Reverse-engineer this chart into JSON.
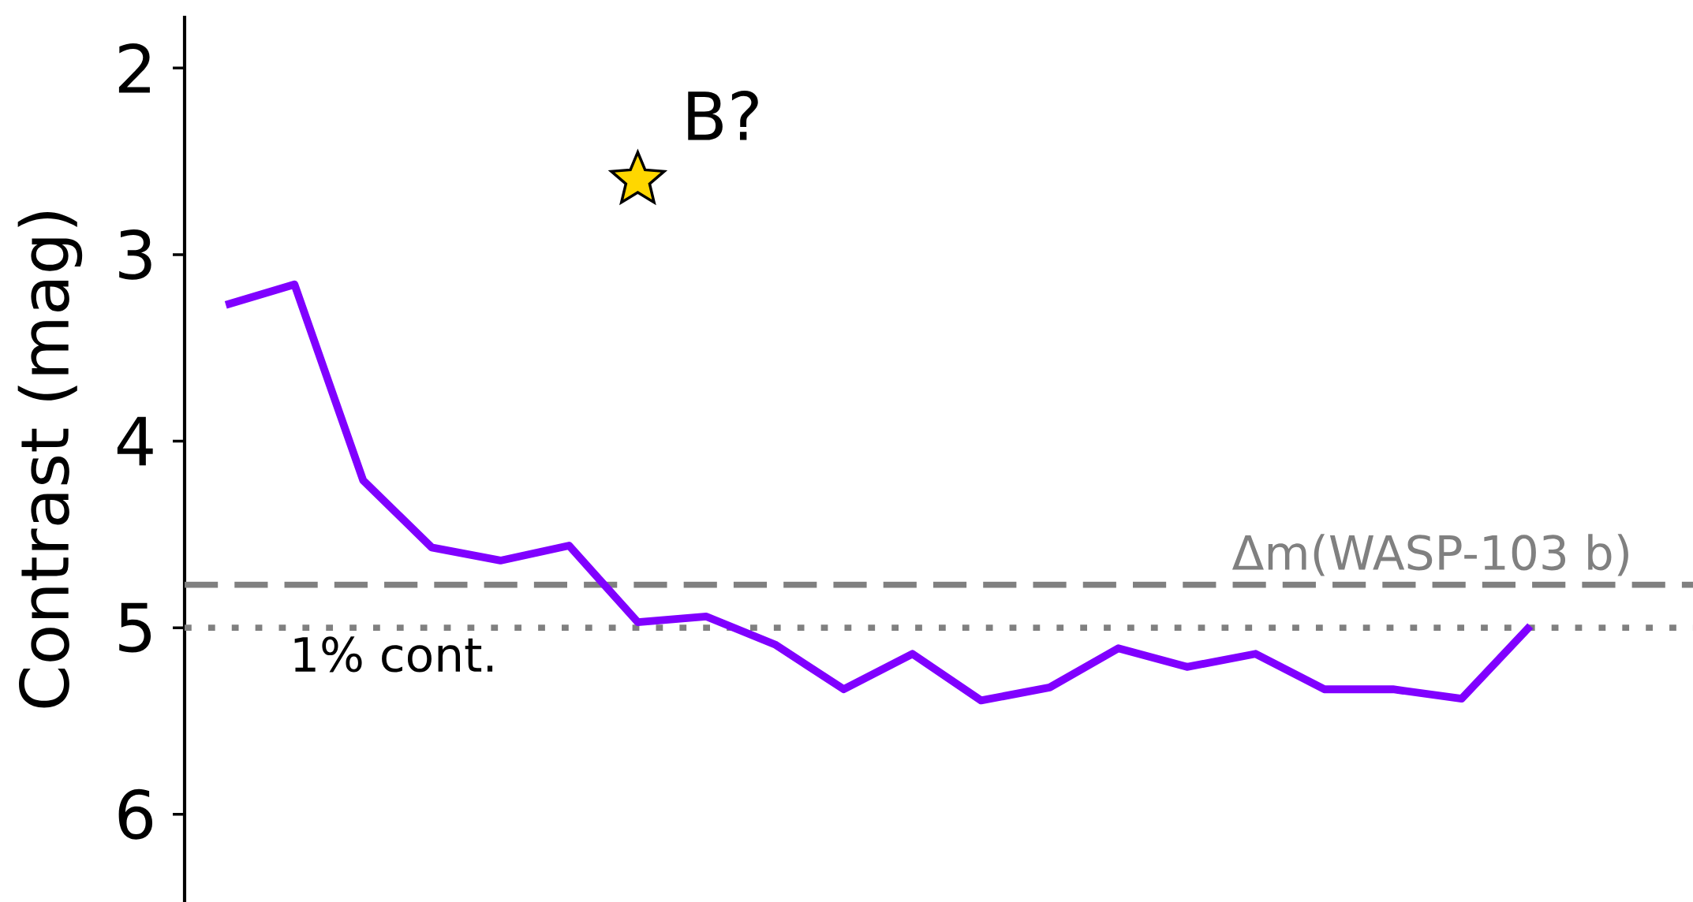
{
  "chart_data": {
    "type": "line",
    "ylabel": "Contrast (mag)",
    "categories": [
      null,
      null,
      null,
      null,
      null,
      null,
      null,
      null,
      null,
      null,
      null,
      null,
      null,
      null,
      null,
      null,
      null,
      null,
      null,
      null
    ],
    "series": [
      {
        "color": "#8000ff",
        "values": [
          3.27,
          3.16,
          4.21,
          4.57,
          4.64,
          4.56,
          4.97,
          4.94,
          5.09,
          5.33,
          5.14,
          5.39,
          5.32,
          5.11,
          5.21,
          5.14,
          5.33,
          5.33,
          5.38,
          4.99
        ]
      },
      {
        "type": "scatter",
        "name": "B?",
        "color": "#ffd700",
        "marker": "star",
        "values": [
          null,
          null,
          null,
          null,
          null,
          null,
          2.6,
          null,
          null,
          null,
          null,
          null,
          null,
          null,
          null,
          null,
          null,
          null,
          null,
          null
        ]
      }
    ],
    "ylim": [
      6.47,
      1.72
    ],
    "yticks": [
      2,
      3,
      4,
      5,
      6
    ],
    "ref_lines": [
      {
        "axis": "y",
        "value": 4.77,
        "label": "Δm(WASP-103 b)",
        "color": "#808080",
        "line_style": "dashed"
      },
      {
        "axis": "y",
        "value": 5.0,
        "label": "1% cont.",
        "color": "#808080",
        "line_style": "dotted"
      }
    ],
    "marker": "none",
    "line_style": "solid",
    "grid": false,
    "tick_labels": "y"
  }
}
